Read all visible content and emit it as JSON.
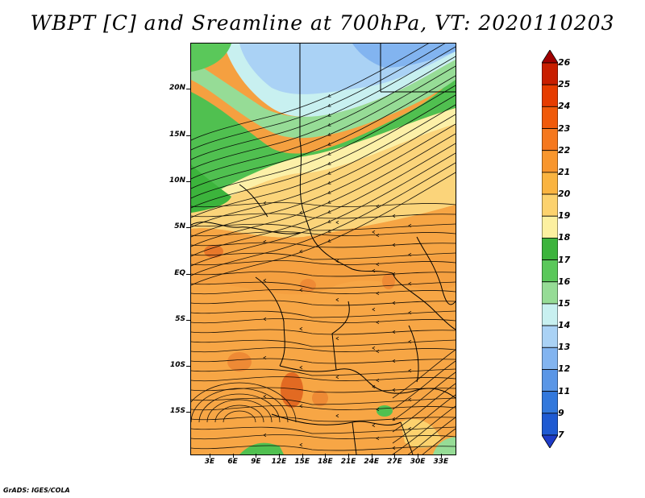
{
  "title": "WBPT [C] and Sreamline at 700hPa, VT: 2020110203",
  "credit": "GrADS: IGES/COLA",
  "map": {
    "lat_labels": [
      "20N",
      "15N",
      "10N",
      "5N",
      "EQ",
      "5S",
      "10S",
      "15S"
    ],
    "lat_values": [
      20,
      15,
      10,
      5,
      0,
      -5,
      -10,
      -15
    ],
    "lon_labels": [
      "3E",
      "6E",
      "9E",
      "12E",
      "15E",
      "18E",
      "21E",
      "24E",
      "27E",
      "30E",
      "33E"
    ],
    "lon_values": [
      3,
      6,
      9,
      12,
      15,
      18,
      21,
      24,
      27,
      30,
      33
    ],
    "lat_range": [
      -19.5,
      25
    ],
    "lon_range": [
      0.5,
      34.8
    ]
  },
  "colorbar": {
    "labels": [
      "26",
      "25",
      "24",
      "23",
      "22",
      "21",
      "20",
      "19",
      "18",
      "17",
      "16",
      "15",
      "14",
      "13",
      "12",
      "11",
      "9",
      "7"
    ],
    "colors": [
      "#a00000",
      "#c81e00",
      "#e63c00",
      "#f05a0a",
      "#f5781e",
      "#f8962d",
      "#fab440",
      "#fcd26e",
      "#fcf0a0",
      "#3cb43c",
      "#5ac85a",
      "#96dc96",
      "#c8f0f0",
      "#aad2f5",
      "#82b4f0",
      "#5a96e6",
      "#3278dc",
      "#1e5ad2",
      "#1e3cc8"
    ]
  }
}
